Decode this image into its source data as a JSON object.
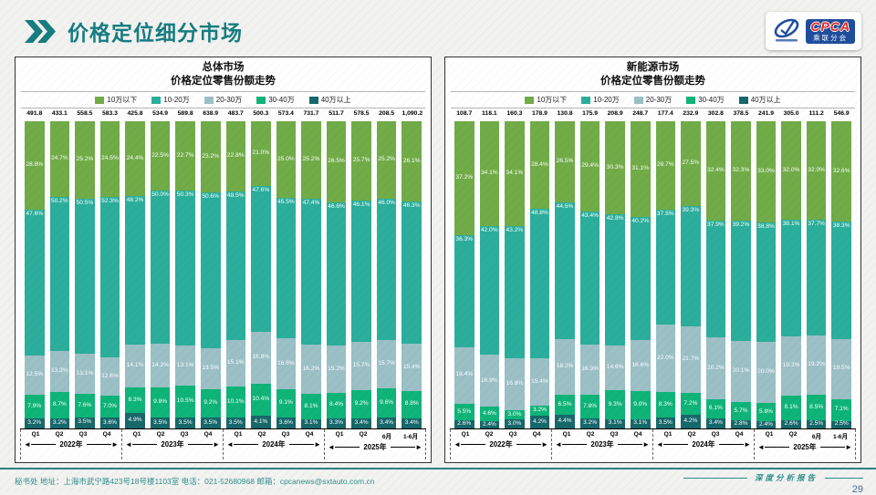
{
  "header": {
    "title": "价格定位细分市场",
    "logo": {
      "main": "CPCA",
      "sub": "乘联分会"
    }
  },
  "legend": {
    "items": [
      "10万以下",
      "10-20万",
      "20-30万",
      "30-40万",
      "40万以上"
    ],
    "colors": [
      "#71ac48",
      "#2cae9c",
      "#9bc0c6",
      "#0fb478",
      "#17686b"
    ]
  },
  "colors": {
    "title_teal": "#177d80",
    "footer_teal": "#2e8f8c",
    "page_number_blue": "#4a6d94",
    "logo_blue": "#1f4e9c",
    "logo_red": "#e02724"
  },
  "chart_data": [
    {
      "type": "bar",
      "stacked": true,
      "title": "总体市场",
      "subtitle": "价格定位零售份额走势",
      "totals": [
        "491.8",
        "433.1",
        "558.5",
        "583.3",
        "425.8",
        "534.9",
        "589.8",
        "638.9",
        "483.7",
        "500.3",
        "573.4",
        "731.7",
        "511.7",
        "578.5",
        "208.5",
        "1,090.2"
      ],
      "categories": [
        "Q1",
        "Q2",
        "Q3",
        "Q4",
        "Q1",
        "Q2",
        "Q3",
        "Q4",
        "Q1",
        "Q2",
        "Q3",
        "Q4",
        "Q1",
        "Q2",
        "6月",
        "1-6月"
      ],
      "year_groups": [
        {
          "label": "2022年",
          "span": 4
        },
        {
          "label": "2023年",
          "span": 4
        },
        {
          "label": "2024年",
          "span": 4
        },
        {
          "label": "2025年",
          "span": 4
        }
      ],
      "ylim": [
        0,
        100
      ],
      "legend_position": "top",
      "series": [
        {
          "name": "10万以下",
          "values": [
            28.8,
            24.7,
            25.2,
            24.5,
            24.4,
            22.5,
            22.7,
            23.2,
            22.8,
            21.0,
            25.0,
            25.2,
            26.5,
            25.7,
            25.2,
            26.1
          ]
        },
        {
          "name": "10-20万",
          "values": [
            47.6,
            50.2,
            50.5,
            52.3,
            48.2,
            50.0,
            50.3,
            50.6,
            48.5,
            47.6,
            45.5,
            47.4,
            46.6,
            46.1,
            46.0,
            46.3
          ]
        },
        {
          "name": "20-30万",
          "values": [
            12.5,
            13.3,
            13.1,
            12.6,
            14.1,
            14.2,
            13.1,
            13.5,
            15.1,
            16.9,
            16.8,
            16.2,
            15.2,
            15.7,
            15.7,
            15.4
          ]
        },
        {
          "name": "30-40万",
          "values": [
            7.9,
            8.7,
            7.6,
            7.0,
            8.3,
            9.8,
            10.5,
            9.2,
            10.1,
            10.4,
            9.1,
            8.1,
            8.4,
            9.2,
            9.6,
            8.8
          ]
        },
        {
          "name": "40万以上",
          "values": [
            3.2,
            3.2,
            3.5,
            3.6,
            4.9,
            3.5,
            3.5,
            3.5,
            3.5,
            4.1,
            3.6,
            3.1,
            3.3,
            3.4,
            3.4,
            3.4
          ]
        }
      ]
    },
    {
      "type": "bar",
      "stacked": true,
      "title": "新能源市场",
      "subtitle": "价格定位零售份额走势",
      "totals": [
        "108.7",
        "118.1",
        "160.3",
        "178.9",
        "130.8",
        "175.9",
        "208.9",
        "248.7",
        "177.4",
        "232.9",
        "302.8",
        "378.5",
        "241.9",
        "305.0",
        "111.2",
        "546.9"
      ],
      "categories": [
        "Q1",
        "Q2",
        "Q3",
        "Q4",
        "Q1",
        "Q2",
        "Q3",
        "Q4",
        "Q1",
        "Q2",
        "Q3",
        "Q4",
        "Q1",
        "Q2",
        "6月",
        "1-6月"
      ],
      "year_groups": [
        {
          "label": "2022年",
          "span": 4
        },
        {
          "label": "2023年",
          "span": 4
        },
        {
          "label": "2024年",
          "span": 4
        },
        {
          "label": "2025年",
          "span": 4
        }
      ],
      "ylim": [
        0,
        100
      ],
      "legend_position": "top",
      "series": [
        {
          "name": "10万以下",
          "values": [
            37.2,
            34.1,
            34.1,
            28.4,
            26.5,
            29.4,
            30.3,
            31.1,
            28.7,
            27.5,
            32.4,
            32.3,
            33.0,
            32.0,
            32.0,
            32.6
          ]
        },
        {
          "name": "10-20万",
          "values": [
            36.3,
            42.0,
            43.2,
            48.8,
            44.5,
            43.4,
            42.8,
            40.2,
            37.5,
            39.3,
            37.9,
            39.2,
            38.8,
            38.1,
            37.7,
            38.3
          ]
        },
        {
          "name": "20-30万",
          "values": [
            18.4,
            16.9,
            16.8,
            15.4,
            18.2,
            16.3,
            14.6,
            16.6,
            22.0,
            21.7,
            20.2,
            20.1,
            20.0,
            19.3,
            19.2,
            19.5
          ]
        },
        {
          "name": "30-40万",
          "values": [
            5.5,
            4.6,
            3.0,
            3.2,
            6.5,
            7.8,
            9.3,
            9.0,
            8.3,
            7.2,
            6.1,
            5.7,
            5.8,
            8.1,
            8.5,
            7.1
          ]
        },
        {
          "name": "40万以上",
          "values": [
            2.6,
            2.4,
            3.0,
            4.2,
            4.4,
            3.2,
            3.1,
            3.1,
            3.5,
            4.2,
            3.4,
            2.8,
            2.4,
            2.6,
            2.5,
            2.5
          ]
        }
      ]
    }
  ],
  "footer": {
    "contact": "秘书处  地址：上海市武宁路423号18号楼1103室  电话：021-52680968   邮箱：cpcanews@sxtauto.com.cn",
    "report_label": "深度分析报告",
    "page_number": "29"
  }
}
